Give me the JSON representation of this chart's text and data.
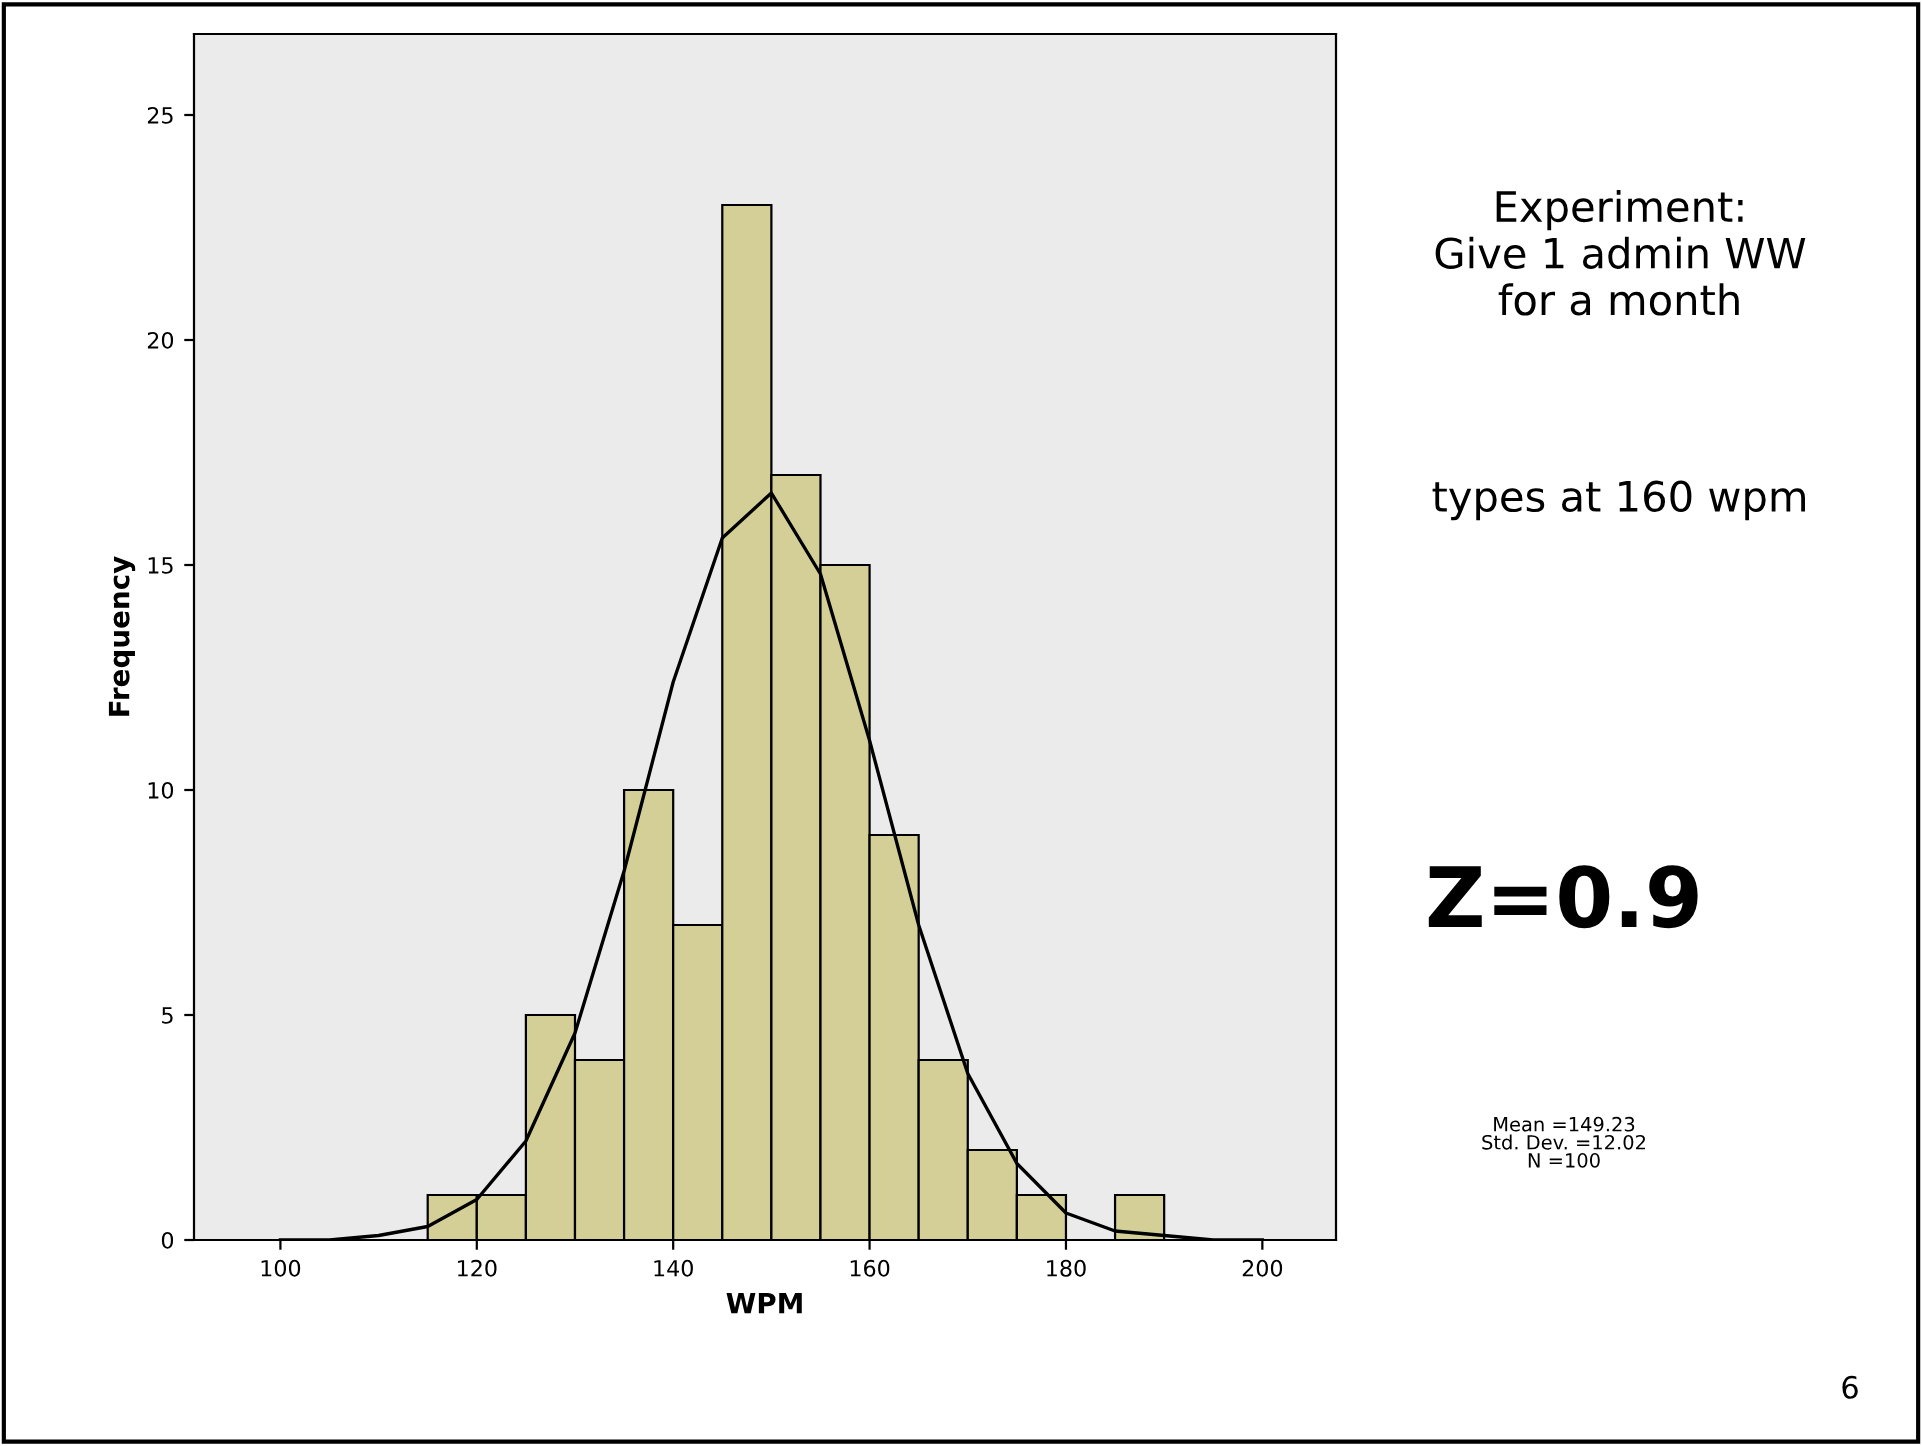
{
  "chart_data": {
    "type": "histogram",
    "xlabel": "WPM",
    "ylabel": "Frequency",
    "bins": [
      115,
      120,
      125,
      130,
      135,
      140,
      145,
      150,
      155,
      160,
      165,
      170,
      175,
      180,
      185,
      190
    ],
    "values": [
      1,
      1,
      5,
      4,
      10,
      7,
      23,
      17,
      15,
      9,
      4,
      2,
      1,
      0,
      1
    ],
    "color": "#d4cf97",
    "series": [
      {
        "type": "line",
        "color": "#000000",
        "x": [
          100,
          105,
          110,
          115,
          120,
          125,
          130,
          135,
          140,
          145,
          150,
          155,
          160,
          165,
          170,
          175,
          180,
          185,
          190,
          195,
          200
        ],
        "values": [
          0.0,
          0.0,
          0.1,
          0.3,
          0.9,
          2.2,
          4.6,
          8.2,
          12.4,
          15.6,
          16.6,
          14.8,
          11.1,
          7.0,
          3.7,
          1.7,
          0.6,
          0.2,
          0.1,
          0.0,
          0.0
        ]
      }
    ],
    "xlim": [
      91.2,
      207.5
    ],
    "ylim": [
      0,
      26.8
    ],
    "xticks": [
      100,
      120,
      140,
      160,
      180,
      200
    ],
    "yticks": [
      0,
      5,
      10,
      15,
      20,
      25
    ],
    "grid": false,
    "legend": false,
    "annotations": [
      "Experiment:\nGive 1 admin WW\nfor a month",
      "types at 160 wpm",
      "Z=0.9",
      "Mean =149.23\nStd. Dev. =12.02\nN =100",
      "6"
    ]
  }
}
